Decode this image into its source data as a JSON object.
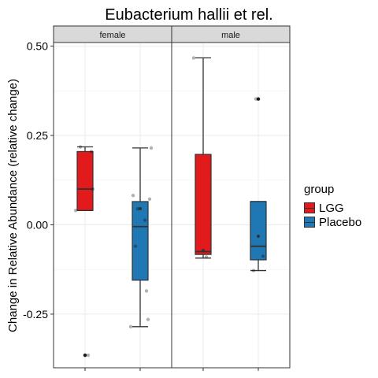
{
  "chart_data": {
    "type": "boxplot",
    "title": "Eubacterium hallii et rel.",
    "xlabel": "",
    "ylabel": "Change in Relative Abundance (relative change)",
    "ylim": [
      -0.4,
      0.51
    ],
    "yticks": [
      0.5,
      0.25,
      0.0,
      -0.25
    ],
    "ytick_labels": [
      "0.50",
      "0.25",
      "0.00",
      "-0.25"
    ],
    "grid": true,
    "legend_placement": "right",
    "legend_title": "group",
    "facets": [
      "female",
      "male"
    ],
    "groups": [
      {
        "name": "LGG",
        "color": "#e31a1c"
      },
      {
        "name": "Placebo",
        "color": "#1f78b4"
      }
    ],
    "boxes": [
      {
        "facet": "female",
        "group": "LGG",
        "min": 0.04,
        "q1": 0.04,
        "median": 0.1,
        "q3": 0.205,
        "max": 0.218,
        "mean": null,
        "outliers": [
          -0.365
        ]
      },
      {
        "facet": "female",
        "group": "Placebo",
        "min": -0.285,
        "q1": -0.155,
        "median": -0.005,
        "q3": 0.065,
        "max": 0.215,
        "mean": 0.045,
        "outliers": []
      },
      {
        "facet": "male",
        "group": "LGG",
        "min": -0.093,
        "q1": -0.083,
        "median": -0.075,
        "q3": 0.197,
        "max": 0.467,
        "mean": -0.072,
        "outliers": []
      },
      {
        "facet": "male",
        "group": "Placebo",
        "min": -0.128,
        "q1": -0.098,
        "median": -0.06,
        "q3": 0.065,
        "max": 0.065,
        "mean": -0.032,
        "outliers": [
          0.352
        ]
      }
    ],
    "points": [
      {
        "facet": "female",
        "group": "LGG",
        "values": [
          0.218,
          0.205,
          0.1,
          0.04,
          -0.365
        ]
      },
      {
        "facet": "female",
        "group": "Placebo",
        "values": [
          0.215,
          0.082,
          0.072,
          0.045,
          0.013,
          -0.06,
          -0.185,
          -0.265,
          -0.285
        ]
      },
      {
        "facet": "male",
        "group": "LGG",
        "values": [
          0.467,
          -0.09
        ]
      },
      {
        "facet": "male",
        "group": "Placebo",
        "values": [
          0.352,
          -0.088,
          -0.128
        ]
      }
    ]
  }
}
